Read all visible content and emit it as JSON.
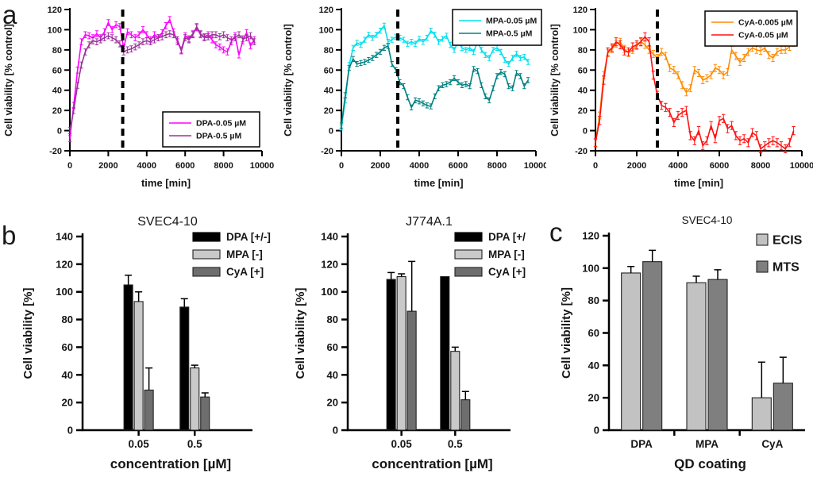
{
  "panels": {
    "a": "a",
    "b": "b",
    "c": "c"
  },
  "chart_data": [
    {
      "id": "a1",
      "type": "line",
      "title": "",
      "xlabel": "time [min]",
      "ylabel": "Cell viability [% control]",
      "xlim": [
        0,
        10000
      ],
      "ylim": [
        -20,
        120
      ],
      "x_ticks": [
        0,
        2000,
        4000,
        6000,
        8000,
        10000
      ],
      "y_ticks": [
        -20,
        0,
        20,
        40,
        60,
        80,
        100,
        120
      ],
      "dashed_line_x": 2750,
      "legend_position": "bottom-right",
      "grid": false,
      "x_start": 0,
      "x_step": 200,
      "series": [
        {
          "name": "DPA-0.05 µM",
          "color": "#ff00ff",
          "point_err": 3,
          "values": [
            -8,
            25,
            60,
            88,
            95,
            94,
            92,
            96,
            92,
            98,
            107,
            100,
            105,
            103,
            82,
            98,
            95,
            92,
            95,
            100,
            95,
            90,
            95,
            92,
            97,
            104,
            110,
            98,
            88,
            80,
            94,
            91,
            96,
            102,
            95,
            93,
            95,
            90,
            85,
            83,
            80,
            78,
            88,
            94,
            75,
            89,
            97,
            84,
            90
          ]
        },
        {
          "name": "DPA-0.5 µM",
          "color": "#993399",
          "point_err": 3,
          "values": [
            0,
            20,
            45,
            65,
            78,
            85,
            89,
            88,
            90,
            92,
            94,
            92,
            90,
            86,
            78,
            80,
            81,
            83,
            85,
            88,
            89,
            88,
            90,
            92,
            93,
            95,
            96,
            95,
            90,
            79,
            92,
            90,
            95,
            103,
            96,
            92,
            93,
            95,
            95,
            93,
            95,
            92,
            90,
            92,
            95,
            91,
            92,
            94,
            88
          ]
        }
      ]
    },
    {
      "id": "a2",
      "type": "line",
      "title": "",
      "xlabel": "time [min]",
      "ylabel": "Cell viability [% control]",
      "xlim": [
        0,
        10000
      ],
      "ylim": [
        -20,
        120
      ],
      "x_ticks": [
        0,
        2000,
        4000,
        6000,
        8000,
        10000
      ],
      "y_ticks": [
        -20,
        0,
        20,
        40,
        60,
        80,
        100,
        120
      ],
      "dashed_line_x": 2900,
      "legend_position": "top-right",
      "grid": false,
      "x_start": 0,
      "x_step": 200,
      "series": [
        {
          "name": "MPA-0.05 µM",
          "color": "#00e0ee",
          "point_err": 2.5,
          "values": [
            3,
            30,
            65,
            82,
            87,
            85,
            90,
            95,
            92,
            95,
            99,
            104,
            88,
            90,
            93,
            92,
            90,
            86,
            88,
            86,
            91,
            88,
            92,
            99,
            95,
            88,
            91,
            94,
            85,
            80,
            88,
            82,
            80,
            82,
            78,
            88,
            80,
            75,
            72,
            80,
            82,
            78,
            70,
            66,
            72,
            76,
            72,
            73,
            68
          ]
        },
        {
          "name": "MPA-0.5 µM",
          "color": "#008080",
          "point_err": 2.5,
          "values": [
            5,
            35,
            62,
            71,
            66,
            67,
            68,
            70,
            72,
            75,
            78,
            82,
            84,
            66,
            60,
            48,
            44,
            33,
            23,
            30,
            29,
            27,
            25,
            24,
            34,
            42,
            45,
            46,
            48,
            52,
            48,
            45,
            46,
            44,
            61,
            59,
            45,
            34,
            30,
            42,
            54,
            58,
            56,
            44,
            42,
            57,
            54,
            44,
            50
          ]
        }
      ]
    },
    {
      "id": "a3",
      "type": "line",
      "title": "",
      "xlabel": "time [min]",
      "ylabel": "Cell viability [% control]",
      "xlim": [
        0,
        10000
      ],
      "ylim": [
        -20,
        120
      ],
      "x_ticks": [
        0,
        2000,
        4000,
        6000,
        8000,
        10000
      ],
      "y_ticks": [
        -20,
        0,
        20,
        40,
        60,
        80,
        100,
        120
      ],
      "dashed_line_x": 3000,
      "legend_position": "top-right",
      "grid": false,
      "x_start": 0,
      "x_step": 200,
      "series": [
        {
          "name": "CyA-0.005 µM",
          "color": "#ff8c00",
          "point_err": 3.5,
          "values": [
            -12,
            15,
            55,
            77,
            81,
            86,
            88,
            81,
            77,
            80,
            84,
            88,
            85,
            80,
            76,
            72,
            78,
            74,
            62,
            60,
            55,
            45,
            38,
            42,
            60,
            57,
            50,
            52,
            55,
            62,
            60,
            55,
            58,
            80,
            74,
            68,
            72,
            78,
            82,
            80,
            79,
            82,
            75,
            72,
            78,
            80,
            80,
            83,
            87
          ]
        },
        {
          "name": "CyA-0.05 µM",
          "color": "#ff1111",
          "point_err": 4,
          "values": [
            -12,
            10,
            50,
            78,
            82,
            88,
            85,
            79,
            78,
            83,
            85,
            88,
            93,
            88,
            55,
            35,
            25,
            23,
            18,
            8,
            15,
            18,
            20,
            -5,
            -10,
            0,
            -15,
            -10,
            5,
            -8,
            10,
            12,
            2,
            5,
            -5,
            -10,
            -8,
            -12,
            -2,
            -5,
            -18,
            -15,
            -12,
            -10,
            -12,
            -15,
            -18,
            -12,
            0
          ]
        }
      ]
    },
    {
      "id": "b1",
      "type": "bar",
      "title": "SVEC4-10",
      "xlabel": "concentration [µM]",
      "ylabel": "Cell viability [%]",
      "ylim": [
        0,
        140
      ],
      "y_ticks": [
        0,
        20,
        40,
        60,
        80,
        100,
        120,
        140
      ],
      "categories": [
        "0.05",
        "0.5"
      ],
      "legend_position": "top-right",
      "grid": false,
      "series": [
        {
          "name": "DPA [+/-]",
          "color": "#000000",
          "values": [
            105,
            89
          ],
          "errors": [
            7,
            6
          ]
        },
        {
          "name": "MPA [-]",
          "color": "#c9c9c9",
          "values": [
            93,
            45
          ],
          "errors": [
            7,
            2
          ]
        },
        {
          "name": "CyA [+]",
          "color": "#6e6e6e",
          "values": [
            29,
            24
          ],
          "errors": [
            16,
            3
          ]
        }
      ]
    },
    {
      "id": "b2",
      "type": "bar",
      "title": "J774A.1",
      "xlabel": "concentration [µM]",
      "ylabel": "Cell viability [%]",
      "ylim": [
        0,
        140
      ],
      "y_ticks": [
        0,
        20,
        40,
        60,
        80,
        100,
        120,
        140
      ],
      "categories": [
        "0.05",
        "0.5"
      ],
      "legend_position": "top-right",
      "grid": false,
      "series": [
        {
          "name": "DPA [+/",
          "color": "#000000",
          "values": [
            109,
            111
          ],
          "errors": [
            5,
            0
          ]
        },
        {
          "name": "MPA [-]",
          "color": "#c9c9c9",
          "values": [
            111,
            57
          ],
          "errors": [
            2,
            3
          ]
        },
        {
          "name": "CyA [+]",
          "color": "#6e6e6e",
          "values": [
            86,
            22
          ],
          "errors": [
            36,
            6
          ]
        }
      ]
    },
    {
      "id": "c",
      "type": "bar",
      "title": "SVEC4-10",
      "xlabel": "QD coating",
      "ylabel": "Cell viability [%]",
      "ylim": [
        0,
        120
      ],
      "y_ticks": [
        0,
        20,
        40,
        60,
        80,
        100,
        120
      ],
      "categories": [
        "DPA",
        "MPA",
        "CyA"
      ],
      "legend_position": "top-right",
      "grid": false,
      "series": [
        {
          "name": "ECIS",
          "color": "#c2c2c2",
          "values": [
            97,
            91,
            20
          ],
          "errors": [
            4,
            4,
            22
          ]
        },
        {
          "name": "MTS",
          "color": "#7f7f7f",
          "values": [
            104,
            93,
            29
          ],
          "errors": [
            7,
            6,
            16
          ]
        }
      ]
    }
  ]
}
